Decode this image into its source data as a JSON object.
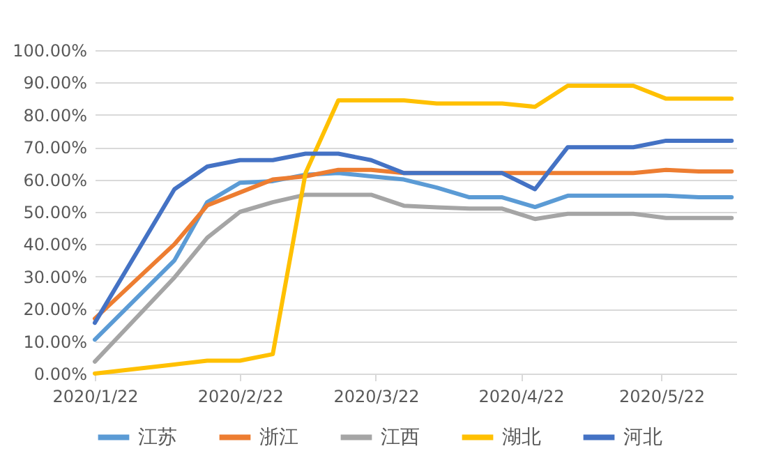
{
  "chart_data": {
    "type": "line",
    "x": [
      "2020-01-22",
      "2020-02-08",
      "2020-02-15",
      "2020-02-22",
      "2020-02-29",
      "2020-03-07",
      "2020-03-14",
      "2020-03-21",
      "2020-03-28",
      "2020-04-04",
      "2020-04-11",
      "2020-04-18",
      "2020-04-25",
      "2020-05-02",
      "2020-05-09",
      "2020-05-16",
      "2020-05-23",
      "2020-05-30",
      "2020-06-06"
    ],
    "series": [
      {
        "name": "江苏",
        "color": "#5b9bd5",
        "values": [
          10.5,
          35,
          53,
          59,
          59.5,
          61.5,
          62,
          61,
          60,
          57.5,
          54.5,
          54.5,
          51.5,
          55,
          55,
          55,
          55,
          54.5,
          54.5
        ]
      },
      {
        "name": "浙江",
        "color": "#ed7d31",
        "values": [
          17,
          40,
          52,
          56,
          60,
          61,
          63,
          63,
          62,
          62,
          62,
          62,
          62,
          62,
          62,
          62,
          63,
          62.5,
          62.5
        ]
      },
      {
        "name": "江西",
        "color": "#a5a5a5",
        "values": [
          3.7,
          29.7,
          42,
          50,
          53,
          55.3,
          55.3,
          55.3,
          51.9,
          51.4,
          51,
          51,
          47.8,
          49.4,
          49.4,
          49.4,
          48.1,
          48.1,
          48.1
        ]
      },
      {
        "name": "湖北",
        "color": "#ffc000",
        "values": [
          0,
          2.8,
          4,
          4,
          6,
          62,
          84.5,
          84.5,
          84.5,
          83.5,
          83.5,
          83.5,
          82.5,
          89,
          89,
          89,
          85,
          85,
          85
        ]
      },
      {
        "name": "河北",
        "color": "#4472c4",
        "values": [
          15.7,
          57,
          64,
          66,
          66,
          68,
          68,
          66,
          62,
          62,
          62,
          62,
          57,
          70,
          70,
          70,
          72,
          72,
          72
        ]
      }
    ],
    "xlim": [
      "2020-01-22",
      "2020-06-07"
    ],
    "xticks": [
      {
        "value": "2020-01-22",
        "label": "2020/1/22"
      },
      {
        "value": "2020-02-22",
        "label": "2020/2/22"
      },
      {
        "value": "2020-03-22",
        "label": "2020/3/22"
      },
      {
        "value": "2020-04-22",
        "label": "2020/4/22"
      },
      {
        "value": "2020-05-22",
        "label": "2020/5/22"
      }
    ],
    "ylim": [
      0,
      100
    ],
    "yticks": [
      {
        "value": 0,
        "label": "0.00%"
      },
      {
        "value": 10,
        "label": "10.00%"
      },
      {
        "value": 20,
        "label": "20.00%"
      },
      {
        "value": 30,
        "label": "30.00%"
      },
      {
        "value": 40,
        "label": "40.00%"
      },
      {
        "value": 50,
        "label": "50.00%"
      },
      {
        "value": 60,
        "label": "60.00%"
      },
      {
        "value": 70,
        "label": "70.00%"
      },
      {
        "value": 80,
        "label": "80.00%"
      },
      {
        "value": 90,
        "label": "90.00%"
      },
      {
        "value": 100,
        "label": "100.00%"
      }
    ],
    "grid": "y",
    "legend": "bottom",
    "marker": "none",
    "line_style": "solid"
  }
}
